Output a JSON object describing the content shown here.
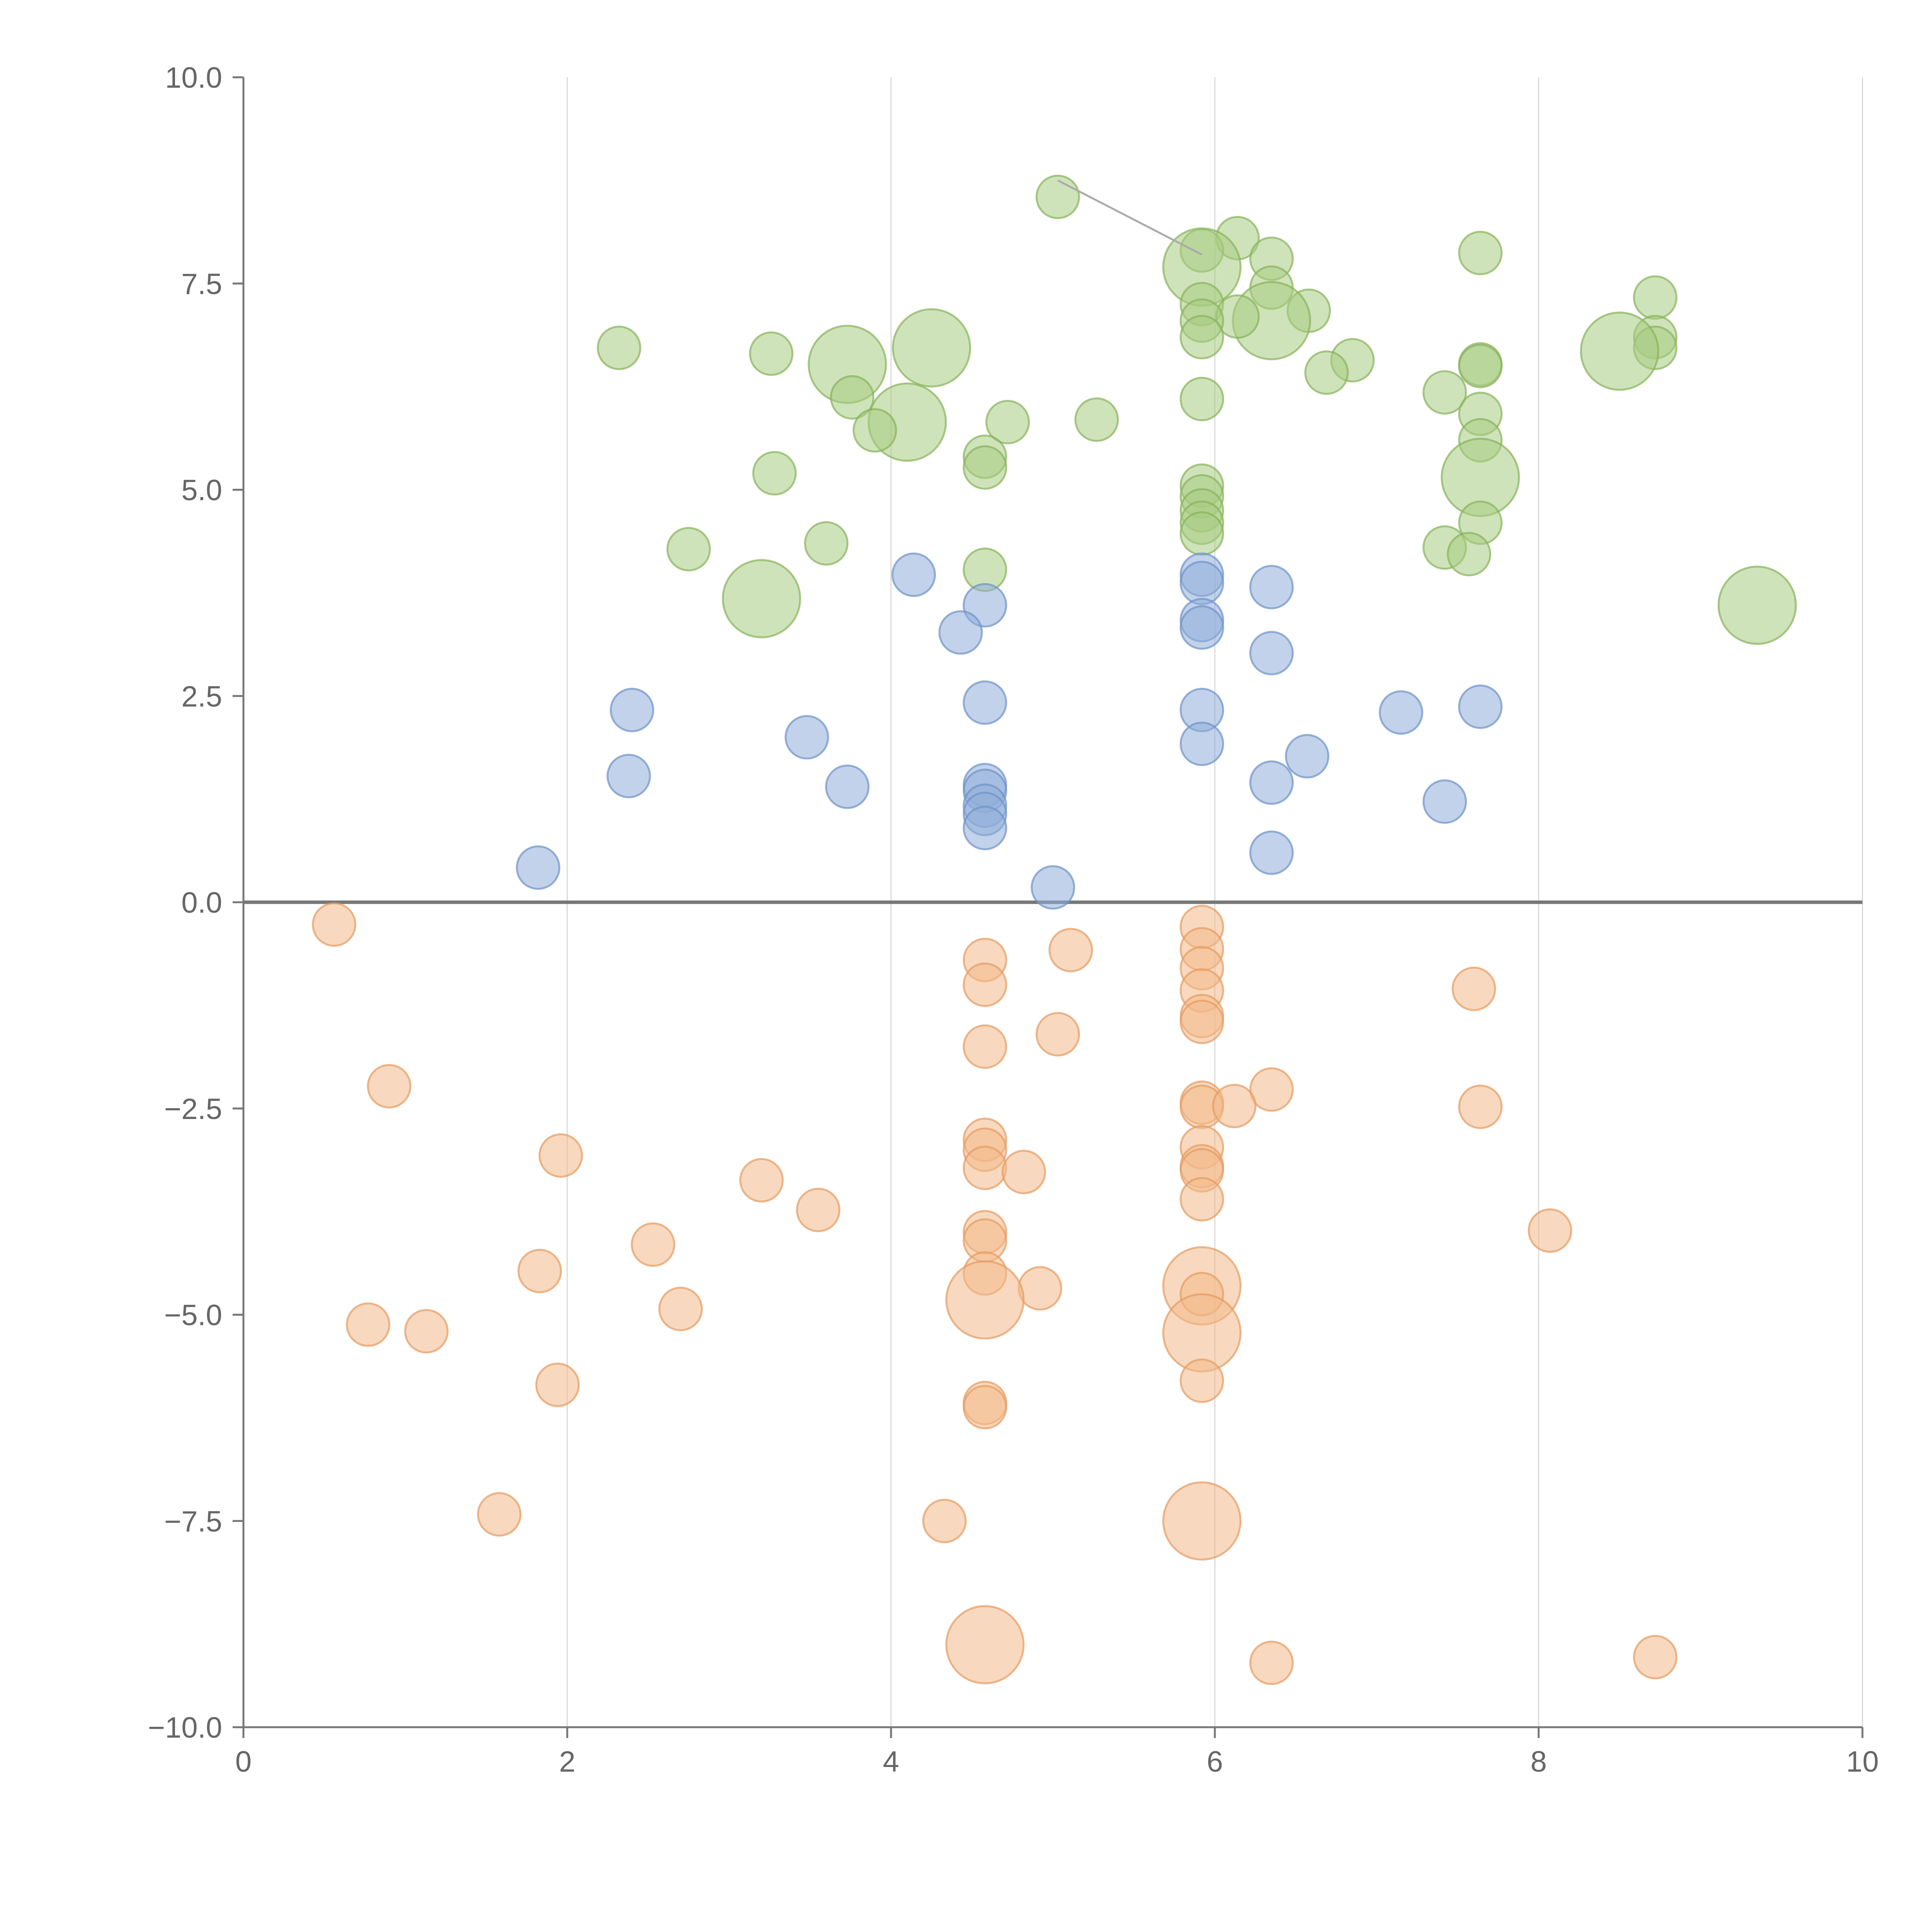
{
  "chart_data": {
    "type": "scatter",
    "title": "",
    "xlabel": "",
    "ylabel": "",
    "xlim": [
      0,
      10
    ],
    "ylim": [
      -10,
      10
    ],
    "x_ticks": [
      "0",
      "2",
      "4",
      "6",
      "8",
      "10"
    ],
    "y_ticks": [
      "10.0",
      "7.5",
      "5.0",
      "2.5",
      "0.0",
      "−2.5",
      "−5.0",
      "−7.5",
      "−10.0"
    ],
    "x_tick_values": [
      0,
      2,
      4,
      6,
      8,
      10
    ],
    "y_tick_values": [
      10,
      7.5,
      5,
      2.5,
      0,
      -2.5,
      -5,
      -7.5,
      -10
    ],
    "grid": "vertical",
    "zero_line": true,
    "series": [
      {
        "color": "#a8cc82",
        "stroke": "#86b25a",
        "points": [
          {
            "x": 5.03,
            "y": 8.55,
            "size": 1
          },
          {
            "x": 6.14,
            "y": 8.05,
            "size": 1
          },
          {
            "x": 5.92,
            "y": 7.9,
            "size": 1
          },
          {
            "x": 5.92,
            "y": 7.7,
            "size": 3
          },
          {
            "x": 7.64,
            "y": 7.87,
            "size": 1
          },
          {
            "x": 6.35,
            "y": 7.8,
            "size": 1
          },
          {
            "x": 6.35,
            "y": 7.45,
            "size": 1
          },
          {
            "x": 8.72,
            "y": 7.33,
            "size": 1
          },
          {
            "x": 5.92,
            "y": 7.25,
            "size": 1
          },
          {
            "x": 6.58,
            "y": 7.17,
            "size": 1
          },
          {
            "x": 6.35,
            "y": 7.05,
            "size": 3
          },
          {
            "x": 6.14,
            "y": 7.1,
            "size": 1
          },
          {
            "x": 5.92,
            "y": 7.05,
            "size": 1
          },
          {
            "x": 5.92,
            "y": 6.85,
            "size": 1
          },
          {
            "x": 8.72,
            "y": 6.85,
            "size": 1
          },
          {
            "x": 8.72,
            "y": 6.72,
            "size": 1
          },
          {
            "x": 2.32,
            "y": 6.72,
            "size": 1
          },
          {
            "x": 4.25,
            "y": 6.72,
            "size": 3
          },
          {
            "x": 8.5,
            "y": 6.68,
            "size": 3
          },
          {
            "x": 3.26,
            "y": 6.65,
            "size": 1
          },
          {
            "x": 6.85,
            "y": 6.57,
            "size": 1
          },
          {
            "x": 3.73,
            "y": 6.52,
            "size": 3
          },
          {
            "x": 7.64,
            "y": 6.52,
            "size": 1
          },
          {
            "x": 7.64,
            "y": 6.5,
            "size": 1
          },
          {
            "x": 6.69,
            "y": 6.42,
            "size": 1
          },
          {
            "x": 7.42,
            "y": 6.18,
            "size": 1
          },
          {
            "x": 3.76,
            "y": 6.12,
            "size": 1
          },
          {
            "x": 5.92,
            "y": 6.1,
            "size": 1
          },
          {
            "x": 7.64,
            "y": 5.92,
            "size": 1
          },
          {
            "x": 5.27,
            "y": 5.85,
            "size": 1
          },
          {
            "x": 4.72,
            "y": 5.82,
            "size": 1
          },
          {
            "x": 4.1,
            "y": 5.82,
            "size": 3
          },
          {
            "x": 3.9,
            "y": 5.72,
            "size": 1
          },
          {
            "x": 7.64,
            "y": 5.6,
            "size": 1
          },
          {
            "x": 4.58,
            "y": 5.4,
            "size": 1
          },
          {
            "x": 4.58,
            "y": 5.27,
            "size": 1
          },
          {
            "x": 3.28,
            "y": 5.2,
            "size": 1
          },
          {
            "x": 7.64,
            "y": 5.15,
            "size": 3
          },
          {
            "x": 5.92,
            "y": 5.05,
            "size": 1
          },
          {
            "x": 5.92,
            "y": 4.92,
            "size": 1
          },
          {
            "x": 5.92,
            "y": 4.75,
            "size": 1
          },
          {
            "x": 5.92,
            "y": 4.6,
            "size": 1
          },
          {
            "x": 7.64,
            "y": 4.6,
            "size": 1
          },
          {
            "x": 5.92,
            "y": 4.47,
            "size": 1
          },
          {
            "x": 3.6,
            "y": 4.35,
            "size": 1
          },
          {
            "x": 7.42,
            "y": 4.3,
            "size": 1
          },
          {
            "x": 2.75,
            "y": 4.28,
            "size": 1
          },
          {
            "x": 7.57,
            "y": 4.22,
            "size": 1
          },
          {
            "x": 4.58,
            "y": 4.03,
            "size": 1
          },
          {
            "x": 3.2,
            "y": 3.68,
            "size": 3
          },
          {
            "x": 9.35,
            "y": 3.6,
            "size": 3
          }
        ]
      },
      {
        "color": "#8fadd9",
        "stroke": "#6d92c7",
        "points": [
          {
            "x": 4.14,
            "y": 3.97,
            "size": 1
          },
          {
            "x": 5.92,
            "y": 3.97,
            "size": 1
          },
          {
            "x": 5.92,
            "y": 3.87,
            "size": 1
          },
          {
            "x": 6.35,
            "y": 3.82,
            "size": 1
          },
          {
            "x": 4.58,
            "y": 3.6,
            "size": 1
          },
          {
            "x": 5.92,
            "y": 3.42,
            "size": 1
          },
          {
            "x": 5.92,
            "y": 3.33,
            "size": 1
          },
          {
            "x": 4.43,
            "y": 3.27,
            "size": 1
          },
          {
            "x": 6.35,
            "y": 3.02,
            "size": 1
          },
          {
            "x": 4.58,
            "y": 2.42,
            "size": 1
          },
          {
            "x": 7.64,
            "y": 2.37,
            "size": 1
          },
          {
            "x": 2.4,
            "y": 2.33,
            "size": 1
          },
          {
            "x": 5.92,
            "y": 2.33,
            "size": 1
          },
          {
            "x": 7.15,
            "y": 2.3,
            "size": 1
          },
          {
            "x": 3.48,
            "y": 2.0,
            "size": 1
          },
          {
            "x": 5.92,
            "y": 1.92,
            "size": 1
          },
          {
            "x": 6.57,
            "y": 1.77,
            "size": 1
          },
          {
            "x": 2.38,
            "y": 1.53,
            "size": 1
          },
          {
            "x": 6.35,
            "y": 1.45,
            "size": 1
          },
          {
            "x": 3.73,
            "y": 1.4,
            "size": 1
          },
          {
            "x": 4.58,
            "y": 1.42,
            "size": 1
          },
          {
            "x": 4.58,
            "y": 1.35,
            "size": 1
          },
          {
            "x": 7.42,
            "y": 1.22,
            "size": 1
          },
          {
            "x": 4.58,
            "y": 1.17,
            "size": 1
          },
          {
            "x": 4.58,
            "y": 1.07,
            "size": 1
          },
          {
            "x": 4.58,
            "y": 0.9,
            "size": 1
          },
          {
            "x": 6.35,
            "y": 0.6,
            "size": 1
          },
          {
            "x": 1.82,
            "y": 0.42,
            "size": 1
          },
          {
            "x": 5.0,
            "y": 0.18,
            "size": 1
          }
        ]
      },
      {
        "color": "#f2b98a",
        "stroke": "#e59a5f",
        "points": [
          {
            "x": 0.56,
            "y": -0.27,
            "size": 1
          },
          {
            "x": 5.92,
            "y": -0.3,
            "size": 1
          },
          {
            "x": 5.92,
            "y": -0.57,
            "size": 1
          },
          {
            "x": 5.11,
            "y": -0.58,
            "size": 1
          },
          {
            "x": 4.58,
            "y": -0.7,
            "size": 1
          },
          {
            "x": 5.92,
            "y": -0.8,
            "size": 1
          },
          {
            "x": 4.58,
            "y": -1.0,
            "size": 1
          },
          {
            "x": 7.6,
            "y": -1.05,
            "size": 1
          },
          {
            "x": 5.92,
            "y": -1.07,
            "size": 1
          },
          {
            "x": 5.92,
            "y": -1.38,
            "size": 1
          },
          {
            "x": 5.92,
            "y": -1.45,
            "size": 1
          },
          {
            "x": 5.03,
            "y": -1.6,
            "size": 1
          },
          {
            "x": 4.58,
            "y": -1.75,
            "size": 1
          },
          {
            "x": 0.9,
            "y": -2.23,
            "size": 1
          },
          {
            "x": 6.35,
            "y": -2.27,
            "size": 1
          },
          {
            "x": 5.92,
            "y": -2.43,
            "size": 1
          },
          {
            "x": 5.92,
            "y": -2.48,
            "size": 1
          },
          {
            "x": 6.12,
            "y": -2.47,
            "size": 1
          },
          {
            "x": 7.64,
            "y": -2.48,
            "size": 1
          },
          {
            "x": 4.58,
            "y": -2.88,
            "size": 1
          },
          {
            "x": 4.58,
            "y": -3.0,
            "size": 1
          },
          {
            "x": 5.92,
            "y": -2.97,
            "size": 1
          },
          {
            "x": 1.96,
            "y": -3.07,
            "size": 1
          },
          {
            "x": 5.92,
            "y": -3.2,
            "size": 1
          },
          {
            "x": 5.92,
            "y": -3.25,
            "size": 1
          },
          {
            "x": 4.58,
            "y": -3.22,
            "size": 1
          },
          {
            "x": 4.82,
            "y": -3.27,
            "size": 1
          },
          {
            "x": 3.2,
            "y": -3.37,
            "size": 1
          },
          {
            "x": 5.92,
            "y": -3.6,
            "size": 1
          },
          {
            "x": 3.55,
            "y": -3.73,
            "size": 1
          },
          {
            "x": 8.07,
            "y": -3.98,
            "size": 1
          },
          {
            "x": 4.58,
            "y": -4.0,
            "size": 1
          },
          {
            "x": 4.58,
            "y": -4.1,
            "size": 1
          },
          {
            "x": 2.53,
            "y": -4.15,
            "size": 1
          },
          {
            "x": 1.83,
            "y": -4.47,
            "size": 1
          },
          {
            "x": 4.58,
            "y": -4.5,
            "size": 1
          },
          {
            "x": 5.92,
            "y": -4.65,
            "size": 3
          },
          {
            "x": 4.92,
            "y": -4.68,
            "size": 1
          },
          {
            "x": 5.92,
            "y": -4.75,
            "size": 1
          },
          {
            "x": 4.58,
            "y": -4.82,
            "size": 3
          },
          {
            "x": 2.7,
            "y": -4.93,
            "size": 1
          },
          {
            "x": 0.77,
            "y": -5.12,
            "size": 1
          },
          {
            "x": 1.13,
            "y": -5.2,
            "size": 1
          },
          {
            "x": 5.92,
            "y": -5.22,
            "size": 3
          },
          {
            "x": 1.94,
            "y": -5.85,
            "size": 1
          },
          {
            "x": 5.92,
            "y": -5.8,
            "size": 1
          },
          {
            "x": 4.58,
            "y": -6.07,
            "size": 1
          },
          {
            "x": 4.58,
            "y": -6.12,
            "size": 1
          },
          {
            "x": 1.58,
            "y": -7.42,
            "size": 1
          },
          {
            "x": 4.33,
            "y": -7.5,
            "size": 1
          },
          {
            "x": 5.92,
            "y": -7.5,
            "size": 3
          },
          {
            "x": 4.58,
            "y": -9.0,
            "size": 3
          },
          {
            "x": 6.35,
            "y": -9.22,
            "size": 1
          },
          {
            "x": 8.72,
            "y": -9.15,
            "size": 1
          }
        ]
      }
    ],
    "connector": {
      "from": [
        5.03,
        8.75
      ],
      "to": [
        5.92,
        7.85
      ]
    }
  }
}
